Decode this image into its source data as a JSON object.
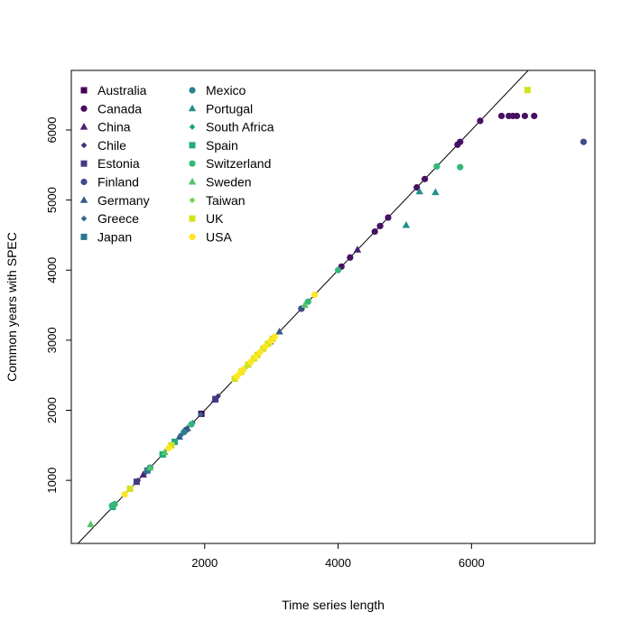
{
  "chart_data": {
    "type": "scatter",
    "title": "",
    "xlabel": "Time series length",
    "ylabel": "Common years with SPEC",
    "xlim": [
      0,
      7850
    ],
    "ylim": [
      100,
      6850
    ],
    "xticks": [
      "2000",
      "4000",
      "6000"
    ],
    "yticks": [
      "1000",
      "2000",
      "3000",
      "4000",
      "5000",
      "6000"
    ],
    "xtick_values": [
      2000,
      4000,
      6000
    ],
    "ytick_values": [
      1000,
      2000,
      3000,
      4000,
      5000,
      6000
    ],
    "reference_line": "y = x",
    "grid": false,
    "legend_position": "top-left",
    "series": [
      {
        "name": "Australia",
        "color": "#440154",
        "marker": "square",
        "points": [
          [
            1950,
            1950
          ]
        ]
      },
      {
        "name": "Canada",
        "color": "#471063",
        "marker": "circle",
        "points": [
          [
            3450,
            3450
          ],
          [
            4050,
            4050
          ],
          [
            4180,
            4180
          ],
          [
            4550,
            4550
          ],
          [
            4630,
            4630
          ],
          [
            4750,
            4750
          ],
          [
            5180,
            5180
          ],
          [
            5300,
            5300
          ],
          [
            5790,
            5790
          ],
          [
            5830,
            5830
          ],
          [
            6130,
            6130
          ],
          [
            6450,
            6200
          ],
          [
            6560,
            6200
          ],
          [
            6620,
            6200
          ],
          [
            6680,
            6200
          ],
          [
            6800,
            6200
          ],
          [
            6940,
            6200
          ]
        ]
      },
      {
        "name": "China",
        "color": "#481F70",
        "marker": "triangle",
        "points": [
          [
            1080,
            1080
          ],
          [
            2150,
            2150
          ],
          [
            2980,
            2980
          ],
          [
            4290,
            4290
          ]
        ]
      },
      {
        "name": "Chile",
        "color": "#472D7B",
        "marker": "diamond",
        "points": [
          [
            1000,
            1000
          ],
          [
            1100,
            1100
          ],
          [
            1700,
            1700
          ],
          [
            2200,
            2200
          ],
          [
            2600,
            2600
          ]
        ]
      },
      {
        "name": "Estonia",
        "color": "#443A83",
        "marker": "square",
        "points": [
          [
            980,
            980
          ],
          [
            2160,
            2160
          ]
        ]
      },
      {
        "name": "Finland",
        "color": "#3E4A89",
        "marker": "circle",
        "points": [
          [
            7680,
            5830
          ],
          [
            3450,
            3450
          ],
          [
            1720,
            1720
          ]
        ]
      },
      {
        "name": "Germany",
        "color": "#38598C",
        "marker": "triangle",
        "points": [
          [
            1740,
            1740
          ],
          [
            3120,
            3120
          ],
          [
            1620,
            1620
          ]
        ]
      },
      {
        "name": "Greece",
        "color": "#31688E",
        "marker": "diamond",
        "points": [
          [
            1640,
            1640
          ],
          [
            1820,
            1820
          ],
          [
            1940,
            1940
          ]
        ]
      },
      {
        "name": "Japan",
        "color": "#2B758E",
        "marker": "square",
        "points": [
          [
            1370,
            1370
          ],
          [
            1140,
            1140
          ]
        ]
      },
      {
        "name": "Mexico",
        "color": "#26828E",
        "marker": "circle",
        "points": [
          [
            1690,
            1690
          ],
          [
            1180,
            1180
          ]
        ]
      },
      {
        "name": "Portugal",
        "color": "#21908D",
        "marker": "triangle",
        "points": [
          [
            5020,
            4640
          ],
          [
            5220,
            5120
          ],
          [
            5460,
            5110
          ]
        ]
      },
      {
        "name": "South Africa",
        "color": "#1F9E89",
        "marker": "diamond",
        "points": [
          [
            1530,
            1530
          ],
          [
            2710,
            2710
          ]
        ]
      },
      {
        "name": "Spain",
        "color": "#22A884",
        "marker": "square",
        "points": [
          [
            1550,
            1550
          ],
          [
            1370,
            1370
          ],
          [
            620,
            620
          ]
        ]
      },
      {
        "name": "Switzerland",
        "color": "#35B779",
        "marker": "circle",
        "points": [
          [
            5830,
            5470
          ],
          [
            5480,
            5480
          ],
          [
            4000,
            4000
          ],
          [
            3550,
            3550
          ],
          [
            610,
            640
          ],
          [
            650,
            660
          ],
          [
            1800,
            1800
          ]
        ]
      },
      {
        "name": "Sweden",
        "color": "#54C568",
        "marker": "triangle",
        "points": [
          [
            3500,
            3500
          ],
          [
            2650,
            2650
          ],
          [
            1400,
            1400
          ],
          [
            1180,
            1180
          ],
          [
            290,
            370
          ]
        ]
      },
      {
        "name": "Taiwan",
        "color": "#7AD151",
        "marker": "diamond",
        "points": [
          [
            2620,
            2620
          ],
          [
            2720,
            2720
          ],
          [
            2800,
            2800
          ],
          [
            2870,
            2870
          ],
          [
            3640,
            3640
          ]
        ]
      },
      {
        "name": "UK",
        "color": "#D2E21B",
        "marker": "square",
        "points": [
          [
            6840,
            6570
          ],
          [
            2450,
            2450
          ],
          [
            2550,
            2550
          ],
          [
            2650,
            2650
          ],
          [
            2740,
            2740
          ],
          [
            2790,
            2790
          ],
          [
            2880,
            2880
          ],
          [
            2950,
            2950
          ],
          [
            3020,
            3020
          ],
          [
            1500,
            1500
          ],
          [
            880,
            880
          ]
        ]
      },
      {
        "name": "USA",
        "color": "#FDE725",
        "marker": "circle",
        "points": [
          [
            2480,
            2480
          ],
          [
            2530,
            2530
          ],
          [
            2580,
            2580
          ],
          [
            2690,
            2690
          ],
          [
            2760,
            2760
          ],
          [
            2830,
            2830
          ],
          [
            2910,
            2910
          ],
          [
            2990,
            2990
          ],
          [
            3050,
            3050
          ],
          [
            3650,
            3650
          ],
          [
            1460,
            1460
          ],
          [
            800,
            800
          ]
        ]
      }
    ]
  }
}
